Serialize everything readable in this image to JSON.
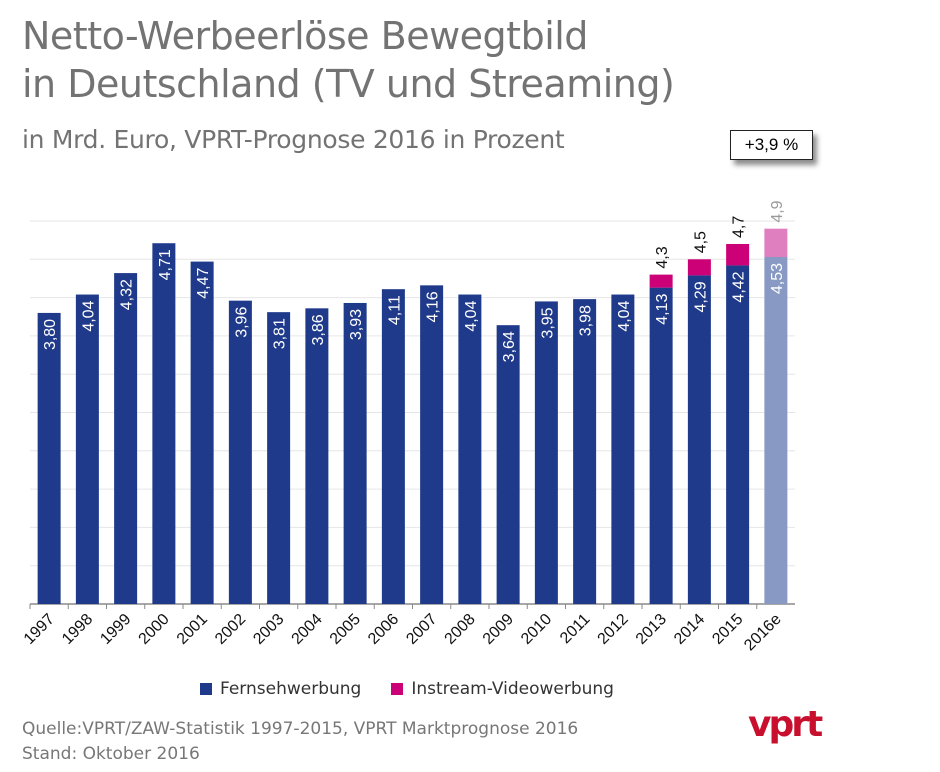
{
  "header": {
    "title_line1": "Netto-Werbeerlöse Bewegtbild",
    "title_line2": "in Deutschland (TV und Streaming)",
    "subtitle": "in Mrd. Euro, VPRT-Prognose 2016 in Prozent",
    "growth_callout": "+3,9 %"
  },
  "colors": {
    "tv": "#1f3a8a",
    "tv_forecast": "#8899c3",
    "instream": "#cc0077",
    "instream_forecast": "#e07fbf",
    "grid": "#e6e6e6"
  },
  "chart_data": {
    "type": "bar",
    "stacked": true,
    "categories": [
      "1997",
      "1998",
      "1999",
      "2000",
      "2001",
      "2002",
      "2003",
      "2004",
      "2005",
      "2006",
      "2007",
      "2008",
      "2009",
      "2010",
      "2011",
      "2012",
      "2013",
      "2014",
      "2015",
      "2016e"
    ],
    "series": [
      {
        "name": "Fernsehwerbung",
        "values": [
          3.8,
          4.04,
          4.32,
          4.71,
          4.47,
          3.96,
          3.81,
          3.86,
          3.93,
          4.11,
          4.16,
          4.04,
          3.64,
          3.95,
          3.98,
          4.04,
          4.13,
          4.29,
          4.42,
          4.53
        ],
        "labels": [
          "3,80",
          "4,04",
          "4,32",
          "4,71",
          "4,47",
          "3,96",
          "3,81",
          "3,86",
          "3,93",
          "4,11",
          "4,16",
          "4,04",
          "3,64",
          "3,95",
          "3,98",
          "4,04",
          "4,13",
          "4,29",
          "4,42",
          "4,53"
        ]
      },
      {
        "name": "Instream-Videowerbung",
        "values": [
          0,
          0,
          0,
          0,
          0,
          0,
          0,
          0,
          0,
          0,
          0,
          0,
          0,
          0,
          0,
          0,
          0.17,
          0.21,
          0.28,
          0.37
        ]
      }
    ],
    "totals": {
      "2013": "4,3",
      "2014": "4,5",
      "2015": "4,7",
      "2016e": "4,9"
    },
    "forecast_category": "2016e",
    "ylim": [
      0,
      5
    ],
    "grid": true,
    "legend": "bottom"
  },
  "legend": {
    "tv_label": "Fernsehwerbung",
    "instream_label": "Instream-Videowerbung"
  },
  "footer": {
    "source": "Quelle:VPRT/ZAW-Statistik 1997-2015, VPRT Marktprognose 2016",
    "date": "Stand:  Oktober 2016",
    "logo_text": "vprt"
  }
}
